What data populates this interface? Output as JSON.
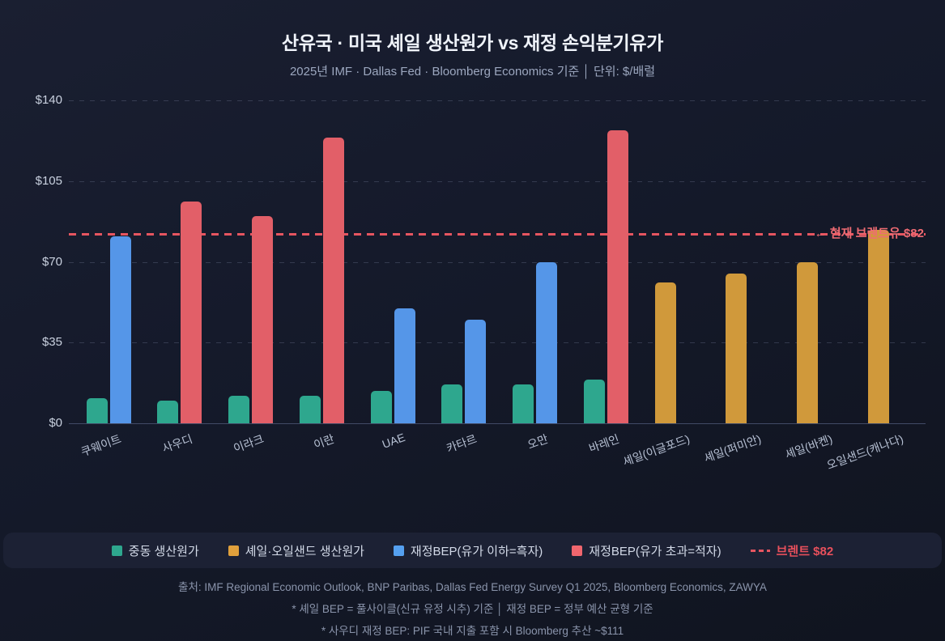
{
  "header": {
    "title": "산유국 · 미국 셰일 생산원가 vs 재정 손익분기유가",
    "subtitle": "2025년 IMF · Dallas Fed · Bloomberg Economics 기준  │  단위: $/배럴"
  },
  "chart_data": {
    "type": "bar",
    "title": "산유국 · 미국 셰일 생산원가 vs 재정 손익분기유가",
    "unit": "$/배럴",
    "ylim": [
      0,
      140
    ],
    "grid": "dashed-horizontal",
    "legend_position": "bottom",
    "categories": [
      "쿠웨이트",
      "사우디",
      "이라크",
      "이란",
      "UAE",
      "카타르",
      "오만",
      "바레인",
      "셰일(이글포드)",
      "셰일(퍼미안)",
      "셰일(바켄)",
      "오일샌드(캐나다)"
    ],
    "series": [
      {
        "name": "중동 생산원가",
        "key": "production-cost",
        "color": "#2ea78e",
        "values": [
          11,
          10,
          12,
          12,
          14,
          17,
          17,
          19,
          null,
          null,
          null,
          null
        ]
      },
      {
        "name": "셰일·오일샌드 생산원가",
        "key": "shale-cost",
        "color": "#d0993b",
        "values": [
          null,
          null,
          null,
          null,
          null,
          null,
          null,
          null,
          61,
          65,
          70,
          84
        ]
      },
      {
        "name": "재정BEP",
        "key": "fiscal-bep",
        "threshold": 82,
        "surplus_color": "#5596e8",
        "deficit_color": "#e25f68",
        "values": [
          81,
          96,
          90,
          124,
          50,
          45,
          70,
          127,
          null,
          null,
          null,
          null
        ]
      }
    ],
    "y_ticks": [
      {
        "label": "$140",
        "value": 140
      },
      {
        "label": "$105",
        "value": 105
      },
      {
        "label": "$70",
        "value": 70
      },
      {
        "label": "$35",
        "value": 35
      },
      {
        "label": "$0",
        "value": 0
      }
    ],
    "reference_line": {
      "value": 82,
      "color": "#e65560",
      "annotation": "← 현재 브렌트유 $82"
    }
  },
  "legend": {
    "items": [
      {
        "type": "square",
        "color": "#2ea78e",
        "label": "중동 생산원가"
      },
      {
        "type": "square",
        "color": "#e0a03c",
        "label": "셰일·오일샌드 생산원가"
      },
      {
        "type": "square",
        "color": "#55a0f0",
        "label": "재정BEP(유가 이하=흑자)"
      },
      {
        "type": "square",
        "color": "#f0666e",
        "label": "재정BEP(유가 초과=적자)"
      },
      {
        "type": "dash",
        "color": "#e65560",
        "label": "브렌트 $82",
        "text_color": "#e8505c"
      }
    ]
  },
  "footer": {
    "lines": [
      "출처: IMF Regional Economic Outlook, BNP Paribas, Dallas Fed Energy Survey Q1 2025, Bloomberg Economics, ZAWYA",
      "* 셰일 BEP = 풀사이클(신규 유정 시추) 기준  │  재정 BEP = 정부 예산 균형 기준",
      "* 사우디 재정 BEP: PIF 국내 지출 포함 시 Bloomberg 추산 ~$111"
    ]
  }
}
